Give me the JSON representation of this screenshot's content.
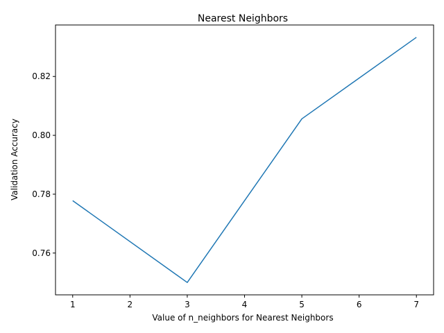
{
  "chart_data": {
    "type": "line",
    "title": "Nearest Neighbors",
    "xlabel": "Value of n_neighbors for Nearest Neighbors",
    "ylabel": "Validation Accuracy",
    "x": [
      1,
      3,
      5,
      7
    ],
    "series": [
      {
        "values": [
          0.7778,
          0.75,
          0.8056,
          0.8333
        ],
        "color": "#1f77b4"
      }
    ],
    "xlim": [
      0.7,
      7.3
    ],
    "ylim": [
      0.7458,
      0.8375
    ],
    "xticks": [
      1,
      2,
      3,
      4,
      5,
      6,
      7
    ],
    "xtick_labels": [
      "1",
      "2",
      "3",
      "4",
      "5",
      "6",
      "7"
    ],
    "yticks": [
      0.76,
      0.78,
      0.8,
      0.82
    ],
    "ytick_labels": [
      "0.76",
      "0.78",
      "0.80",
      "0.82"
    ],
    "grid": false,
    "legend": "none"
  }
}
